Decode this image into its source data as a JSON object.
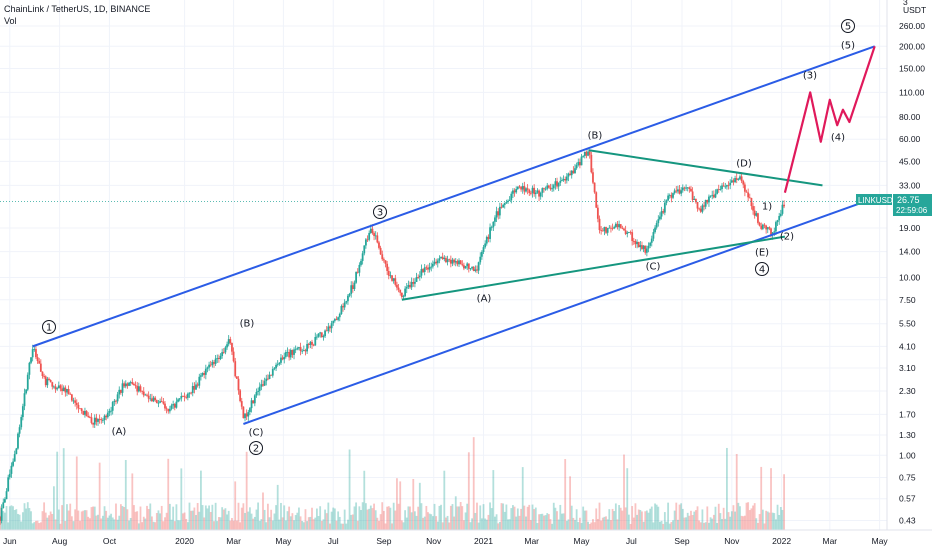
{
  "header": {
    "title": "ChainLink / TetherUS, 1D, BINANCE",
    "volume_label": "Vol"
  },
  "price_axis": {
    "unit": "USDT",
    "currency_glyph": "3",
    "ticks": [
      "260.00",
      "200.00",
      "150.00",
      "110.00",
      "80.00",
      "60.00",
      "45.00",
      "33.00",
      "19.00",
      "14.00",
      "10.00",
      "7.50",
      "5.50",
      "4.10",
      "3.10",
      "2.30",
      "1.70",
      "1.30",
      "1.00",
      "0.75",
      "0.57",
      "0.43"
    ]
  },
  "price_label": {
    "symbol": "LINKUSDT",
    "value": "26.75",
    "countdown": "22:59:06"
  },
  "time_axis": {
    "labels": [
      "Jun",
      "Aug",
      "Oct",
      "2020",
      "Mar",
      "May",
      "Jul",
      "Sep",
      "Nov",
      "2021",
      "Mar",
      "May",
      "Jul",
      "Sep",
      "Nov",
      "2022",
      "Mar",
      "May"
    ]
  },
  "waves": [
    {
      "id": "c1",
      "text": "1",
      "circled": true
    },
    {
      "id": "wA1",
      "text": "(A)",
      "circled": false
    },
    {
      "id": "wB1",
      "text": "(B)",
      "circled": false
    },
    {
      "id": "wC1",
      "text": "(C)",
      "circled": false
    },
    {
      "id": "c2",
      "text": "2",
      "circled": true
    },
    {
      "id": "c3",
      "text": "3",
      "circled": true
    },
    {
      "id": "wA2",
      "text": "(A)",
      "circled": false
    },
    {
      "id": "wB2",
      "text": "(B)",
      "circled": false
    },
    {
      "id": "wC2",
      "text": "(C)",
      "circled": false
    },
    {
      "id": "wD2",
      "text": "(D)",
      "circled": false
    },
    {
      "id": "wE2",
      "text": "(E)",
      "circled": false
    },
    {
      "id": "c4",
      "text": "4",
      "circled": true
    },
    {
      "id": "s1",
      "text": "1)",
      "circled": false
    },
    {
      "id": "s2",
      "text": "(2)",
      "circled": false
    },
    {
      "id": "s3",
      "text": "(3)",
      "circled": false
    },
    {
      "id": "s4",
      "text": "(4)",
      "circled": false
    },
    {
      "id": "s5",
      "text": "(5)",
      "circled": false
    },
    {
      "id": "c5",
      "text": "5",
      "circled": true
    }
  ],
  "colors": {
    "up": "#26a69a",
    "down": "#ef5350",
    "channel": "#2b5ce6",
    "triangle": "#15967f",
    "projection": "#e0195b",
    "label_bg": "#26a69a"
  },
  "chart_data": {
    "type": "candlestick",
    "title": "ChainLink / TetherUS, 1D, BINANCE",
    "scale": "log",
    "ylim": [
      0.38,
      320
    ],
    "xlim": [
      "2019-05-20",
      "2022-05-10"
    ],
    "keypoints": [
      {
        "date": "2019-05-20",
        "price": 0.45
      },
      {
        "date": "2019-06-10",
        "price": 1.2
      },
      {
        "date": "2019-06-29",
        "price": 4.1
      },
      {
        "date": "2019-07-15",
        "price": 2.6
      },
      {
        "date": "2019-08-10",
        "price": 2.3
      },
      {
        "date": "2019-09-05",
        "price": 1.6
      },
      {
        "date": "2019-09-22",
        "price": 1.5
      },
      {
        "date": "2019-10-20",
        "price": 2.6
      },
      {
        "date": "2019-11-15",
        "price": 2.2
      },
      {
        "date": "2019-12-15",
        "price": 1.8
      },
      {
        "date": "2020-01-15",
        "price": 2.5
      },
      {
        "date": "2020-02-05",
        "price": 3.3
      },
      {
        "date": "2020-02-25",
        "price": 4.4
      },
      {
        "date": "2020-03-13",
        "price": 1.6
      },
      {
        "date": "2020-04-05",
        "price": 2.5
      },
      {
        "date": "2020-05-01",
        "price": 3.6
      },
      {
        "date": "2020-06-01",
        "price": 4.1
      },
      {
        "date": "2020-07-01",
        "price": 5.5
      },
      {
        "date": "2020-07-25",
        "price": 9
      },
      {
        "date": "2020-08-16",
        "price": 19.5
      },
      {
        "date": "2020-09-05",
        "price": 11
      },
      {
        "date": "2020-09-23",
        "price": 8
      },
      {
        "date": "2020-10-20",
        "price": 11
      },
      {
        "date": "2020-11-10",
        "price": 13
      },
      {
        "date": "2020-12-01",
        "price": 12
      },
      {
        "date": "2020-12-23",
        "price": 11
      },
      {
        "date": "2021-01-15",
        "price": 22
      },
      {
        "date": "2021-02-10",
        "price": 32
      },
      {
        "date": "2021-03-10",
        "price": 30
      },
      {
        "date": "2021-04-10",
        "price": 35
      },
      {
        "date": "2021-05-10",
        "price": 52
      },
      {
        "date": "2021-05-23",
        "price": 18
      },
      {
        "date": "2021-06-15",
        "price": 20
      },
      {
        "date": "2021-07-20",
        "price": 14
      },
      {
        "date": "2021-08-15",
        "price": 28
      },
      {
        "date": "2021-09-07",
        "price": 33
      },
      {
        "date": "2021-09-22",
        "price": 24
      },
      {
        "date": "2021-10-15",
        "price": 31
      },
      {
        "date": "2021-11-10",
        "price": 37
      },
      {
        "date": "2021-12-05",
        "price": 20
      },
      {
        "date": "2021-12-20",
        "price": 17.5
      },
      {
        "date": "2022-01-05",
        "price": 26.75
      }
    ],
    "trendlines": [
      {
        "name": "channel-top",
        "points": [
          [
            "2019-06-29",
            4.1
          ],
          [
            "2022-04-25",
            200
          ]
        ]
      },
      {
        "name": "channel-bottom",
        "points": [
          [
            "2020-03-13",
            1.5
          ],
          [
            "2022-04-25",
            28
          ]
        ]
      },
      {
        "name": "triangle-top",
        "points": [
          [
            "2021-05-10",
            52
          ],
          [
            "2022-02-20",
            33
          ]
        ]
      },
      {
        "name": "triangle-bottom",
        "points": [
          [
            "2020-09-23",
            7.5
          ],
          [
            "2022-01-05",
            17
          ]
        ]
      }
    ],
    "projection": [
      [
        "2022-01-05",
        30
      ],
      [
        "2022-02-05",
        110
      ],
      [
        "2022-02-18",
        58
      ],
      [
        "2022-03-01",
        100
      ],
      [
        "2022-03-10",
        72
      ],
      [
        "2022-03-17",
        88
      ],
      [
        "2022-03-25",
        75
      ],
      [
        "2022-04-25",
        200
      ]
    ],
    "current_price": 26.75
  }
}
